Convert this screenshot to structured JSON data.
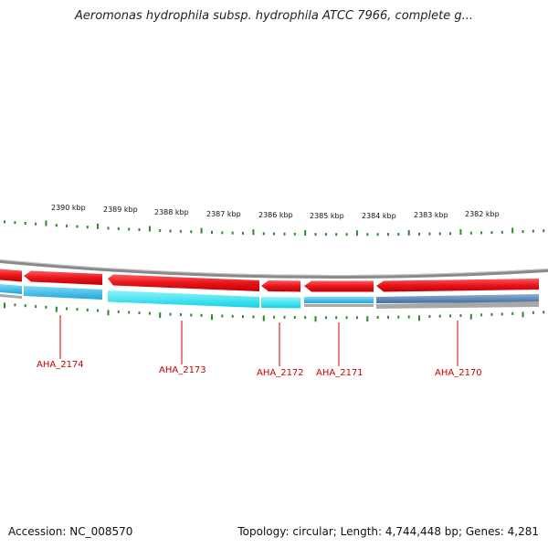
{
  "title": "Aeromonas hydrophila subsp. hydrophila ATCC 7966, complete g...",
  "footer": {
    "accession": "Accession: NC_008570",
    "summary": "Topology: circular; Length: 4,744,448 bp; Genes: 4,281"
  },
  "ruler": {
    "unit": "kbp",
    "labels": [
      "2390 kbp",
      "2389 kbp",
      "2388 kbp",
      "2387 kbp",
      "2386 kbp",
      "2385 kbp",
      "2384 kbp",
      "2383 kbp",
      "2382 kbp"
    ]
  },
  "genes": [
    {
      "name": "AHA_2174"
    },
    {
      "name": "AHA_2173"
    },
    {
      "name": "AHA_2172"
    },
    {
      "name": "AHA_2171"
    },
    {
      "name": "AHA_2170"
    }
  ],
  "colors": {
    "gene_arrow": "#e8141c",
    "cds_cyan": "#35c4f0",
    "cds_light_cyan": "#27e3f2",
    "cds_steel": "#5580b0",
    "backbone": "#8a8a8a",
    "tick": "#2a8a2a",
    "gene_label": "#cc0000"
  }
}
